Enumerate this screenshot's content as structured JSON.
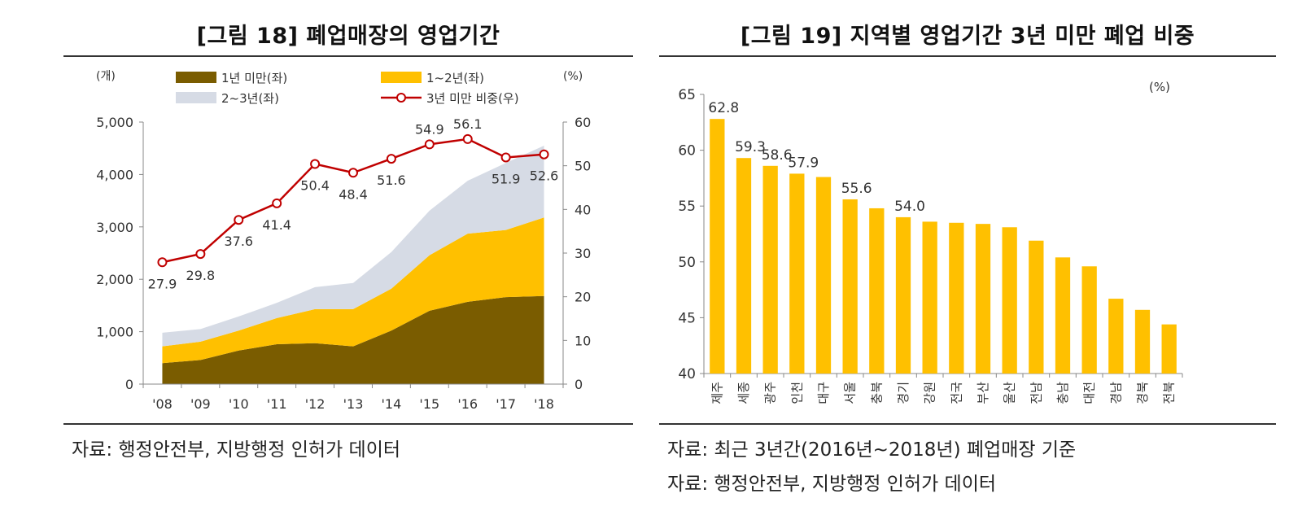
{
  "figures": [
    {
      "title": "[그림 18] 폐업매장의 영업기간",
      "source": "자료: 행정안전부, 지방행정 인허가 데이터"
    },
    {
      "title": "[그림 19] 지역별 영업기간 3년 미만 폐업 비중",
      "notes": [
        "자료: 최근 3년간(2016년~2018년) 폐업매장 기준",
        "자료: 행정안전부, 지방행정 인허가 데이터"
      ]
    }
  ],
  "chart_data": [
    {
      "type": "area",
      "stacked": true,
      "categories": [
        "'08",
        "'09",
        "'10",
        "'11",
        "'12",
        "'13",
        "'14",
        "'15",
        "'16",
        "'17",
        "'18"
      ],
      "left_axis": {
        "unit": "(개)",
        "ylim": [
          0,
          5000
        ],
        "ticks": [
          "0",
          "1,000",
          "2,000",
          "3,000",
          "4,000",
          "5,000"
        ],
        "tick_values": [
          0,
          1000,
          2000,
          3000,
          4000,
          5000
        ]
      },
      "right_axis": {
        "unit": "(%)",
        "ylim": [
          0,
          60
        ],
        "ticks": [
          "0",
          "10",
          "20",
          "30",
          "40",
          "50",
          "60"
        ],
        "tick_values": [
          0,
          10,
          20,
          30,
          40,
          50,
          60
        ]
      },
      "series": [
        {
          "name": "1년 미만(좌)",
          "kind": "area",
          "axis": "left",
          "color": "#7a5c00",
          "values": [
            400,
            460,
            640,
            760,
            780,
            720,
            1020,
            1400,
            1570,
            1660,
            1680
          ]
        },
        {
          "name": "1~2년(좌)",
          "kind": "area",
          "axis": "left",
          "color": "#ffc000",
          "values": [
            320,
            350,
            380,
            500,
            650,
            710,
            800,
            1060,
            1300,
            1280,
            1500
          ]
        },
        {
          "name": "2~3년(좌)",
          "kind": "area",
          "axis": "left",
          "color": "#d6dbe5",
          "values": [
            260,
            240,
            270,
            290,
            420,
            500,
            700,
            850,
            1010,
            1280,
            1370
          ]
        },
        {
          "name": "3년 미만 비중(우)",
          "kind": "line",
          "axis": "right",
          "color": "#c00000",
          "values": [
            27.9,
            29.8,
            37.6,
            41.4,
            50.4,
            48.4,
            51.6,
            54.9,
            56.1,
            51.9,
            52.6
          ],
          "labels": [
            "27.9",
            "29.8",
            "37.6",
            "41.4",
            "50.4",
            "48.4",
            "51.6",
            "54.9",
            "56.1",
            "51.9",
            "52.6"
          ]
        }
      ],
      "legend_placement": "top"
    },
    {
      "type": "bar",
      "unit": "(%)",
      "color": "#ffc000",
      "ylim": [
        40,
        65
      ],
      "ticks": [
        "40",
        "45",
        "50",
        "55",
        "60",
        "65"
      ],
      "tick_values": [
        40,
        45,
        50,
        55,
        60,
        65
      ],
      "categories": [
        "제주",
        "세종",
        "광주",
        "인천",
        "대구",
        "서울",
        "충북",
        "경기",
        "강원",
        "전국",
        "부산",
        "울산",
        "전남",
        "충남",
        "대전",
        "경남",
        "경북",
        "전북"
      ],
      "values": [
        62.8,
        59.3,
        58.6,
        57.9,
        57.6,
        55.6,
        54.8,
        54.0,
        53.6,
        53.5,
        53.4,
        53.1,
        51.9,
        50.4,
        49.6,
        46.7,
        45.7,
        44.4
      ],
      "data_labels": [
        "62.8",
        "59.3",
        "58.6",
        "57.9",
        "",
        "55.6",
        "",
        "54.0",
        "",
        "",
        "",
        "",
        "",
        "",
        "",
        "",
        "",
        ""
      ]
    }
  ]
}
